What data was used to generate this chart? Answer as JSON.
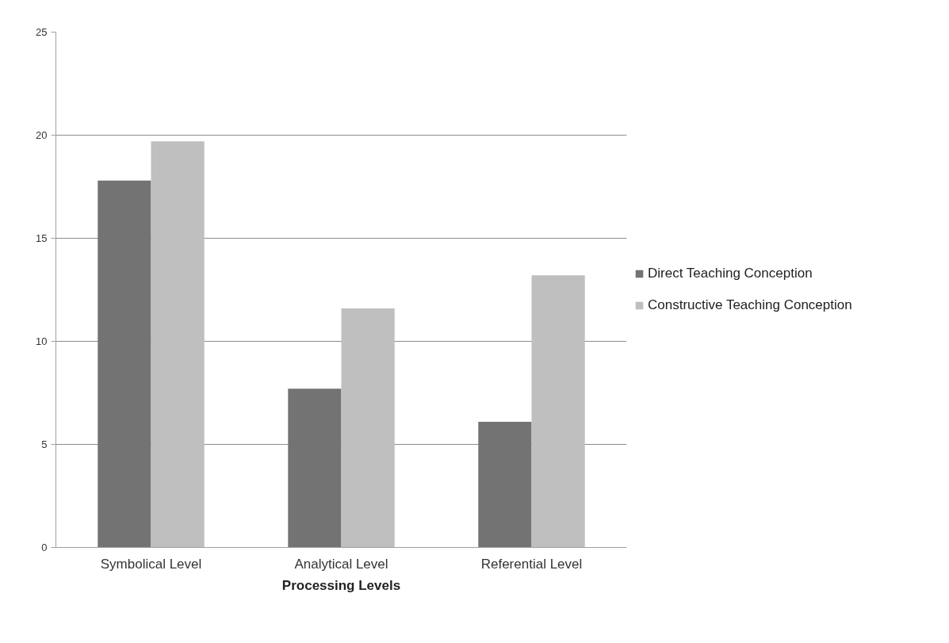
{
  "chart_data": {
    "type": "bar",
    "xlabel": "Processing Levels",
    "categories": [
      "Symbolical Level",
      "Analytical Level",
      "Referential Level"
    ],
    "series": [
      {
        "name": "Direct Teaching Conception",
        "color": "#737373",
        "values": [
          17.8,
          7.7,
          6.1
        ]
      },
      {
        "name": "Constructive Teaching Conception",
        "color": "#bfbfbf",
        "values": [
          19.7,
          11.6,
          13.2
        ]
      }
    ],
    "ylim": [
      0,
      25
    ],
    "yticks": [
      0,
      5,
      10,
      15,
      20,
      25
    ],
    "grid": "y",
    "legend": "right"
  }
}
